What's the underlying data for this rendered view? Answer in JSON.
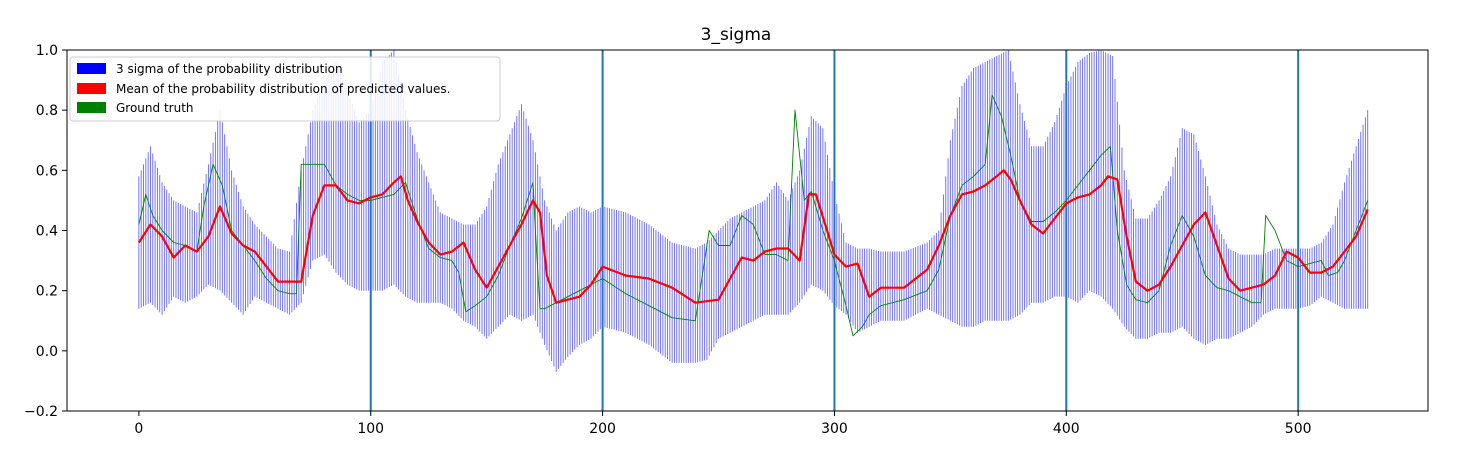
{
  "chart_data": {
    "type": "line",
    "title": "3_sigma",
    "xlabel": "",
    "ylabel": "",
    "xlim": [
      -31,
      556
    ],
    "ylim": [
      -0.2,
      1.0
    ],
    "x_ticks": [
      0,
      100,
      200,
      300,
      400,
      500
    ],
    "y_ticks": [
      -0.2,
      0.0,
      0.2,
      0.4,
      0.6,
      0.8,
      1.0
    ],
    "x_tick_labels": [
      "0",
      "100",
      "200",
      "300",
      "400",
      "500"
    ],
    "y_tick_labels": [
      "−0.2",
      "0.0",
      "0.2",
      "0.4",
      "0.6",
      "0.8",
      "1.0"
    ],
    "vertical_lines": [
      100,
      200,
      300,
      400,
      500
    ],
    "legend_position": "top-left",
    "grid": false,
    "series": [
      {
        "name": "3 sigma of the probability distribution",
        "kind": "band",
        "color": "#0000ff",
        "x": [
          0,
          5,
          10,
          15,
          20,
          25,
          30,
          35,
          40,
          45,
          50,
          55,
          60,
          65,
          70,
          75,
          80,
          85,
          90,
          95,
          100,
          105,
          110,
          115,
          120,
          125,
          130,
          135,
          140,
          145,
          150,
          155,
          160,
          165,
          170,
          175,
          180,
          185,
          190,
          195,
          200,
          210,
          220,
          230,
          240,
          245,
          250,
          255,
          260,
          265,
          270,
          275,
          280,
          285,
          290,
          295,
          300,
          305,
          310,
          315,
          320,
          330,
          340,
          345,
          350,
          355,
          360,
          365,
          370,
          375,
          380,
          385,
          390,
          395,
          400,
          405,
          410,
          415,
          420,
          425,
          430,
          435,
          440,
          445,
          450,
          455,
          460,
          465,
          470,
          475,
          480,
          485,
          490,
          495,
          500,
          505,
          510,
          515,
          520,
          525,
          530
        ],
        "lower": [
          0.14,
          0.16,
          0.12,
          0.18,
          0.16,
          0.18,
          0.22,
          0.2,
          0.16,
          0.12,
          0.18,
          0.16,
          0.14,
          0.12,
          0.16,
          0.3,
          0.32,
          0.26,
          0.22,
          0.2,
          0.2,
          0.2,
          0.22,
          0.18,
          0.16,
          0.16,
          0.16,
          0.14,
          0.1,
          0.08,
          0.04,
          0.08,
          0.12,
          0.1,
          0.12,
          0.02,
          -0.07,
          -0.02,
          0.02,
          0.04,
          0.08,
          0.06,
          0.02,
          -0.04,
          -0.04,
          -0.03,
          0.04,
          0.06,
          0.08,
          0.1,
          0.12,
          0.12,
          0.12,
          0.16,
          0.22,
          0.2,
          0.15,
          0.12,
          0.06,
          0.08,
          0.1,
          0.1,
          0.14,
          0.12,
          0.1,
          0.08,
          0.08,
          0.1,
          0.1,
          0.1,
          0.12,
          0.16,
          0.16,
          0.18,
          0.18,
          0.16,
          0.2,
          0.18,
          0.14,
          0.08,
          0.04,
          0.04,
          0.06,
          0.06,
          0.08,
          0.04,
          0.02,
          0.04,
          0.04,
          0.06,
          0.08,
          0.12,
          0.14,
          0.14,
          0.14,
          0.15,
          0.18,
          0.16,
          0.14,
          0.14,
          0.14
        ],
        "upper": [
          0.58,
          0.68,
          0.56,
          0.5,
          0.48,
          0.46,
          0.62,
          0.8,
          0.6,
          0.48,
          0.42,
          0.38,
          0.34,
          0.33,
          0.6,
          0.8,
          0.9,
          0.96,
          0.86,
          0.76,
          0.8,
          0.96,
          1.0,
          0.8,
          0.66,
          0.56,
          0.46,
          0.44,
          0.42,
          0.42,
          0.48,
          0.62,
          0.72,
          0.82,
          0.7,
          0.5,
          0.4,
          0.46,
          0.48,
          0.46,
          0.48,
          0.46,
          0.42,
          0.36,
          0.34,
          0.36,
          0.4,
          0.44,
          0.46,
          0.48,
          0.5,
          0.56,
          0.5,
          0.6,
          0.78,
          0.74,
          0.52,
          0.36,
          0.34,
          0.34,
          0.33,
          0.33,
          0.36,
          0.4,
          0.7,
          0.88,
          0.94,
          0.96,
          0.98,
          1.0,
          0.82,
          0.68,
          0.68,
          0.76,
          0.88,
          0.96,
          0.99,
          1.0,
          0.98,
          0.6,
          0.44,
          0.44,
          0.5,
          0.58,
          0.74,
          0.72,
          0.58,
          0.42,
          0.34,
          0.32,
          0.32,
          0.32,
          0.34,
          0.34,
          0.34,
          0.34,
          0.36,
          0.42,
          0.56,
          0.68,
          0.8
        ]
      },
      {
        "name": "Mean of the probability distribution of predicted values.",
        "kind": "line",
        "color": "#ff0000",
        "x": [
          0,
          5,
          10,
          15,
          20,
          25,
          30,
          35,
          40,
          45,
          50,
          55,
          60,
          65,
          70,
          75,
          80,
          85,
          90,
          95,
          100,
          105,
          110,
          113,
          116,
          120,
          125,
          130,
          135,
          140,
          145,
          150,
          155,
          160,
          165,
          170,
          173,
          176,
          180,
          185,
          190,
          195,
          200,
          210,
          220,
          230,
          240,
          250,
          255,
          260,
          265,
          270,
          275,
          280,
          285,
          289,
          292,
          296,
          300,
          305,
          310,
          315,
          320,
          330,
          340,
          345,
          350,
          355,
          360,
          365,
          370,
          373,
          376,
          380,
          385,
          390,
          395,
          400,
          405,
          410,
          415,
          418,
          422,
          426,
          430,
          435,
          440,
          445,
          450,
          455,
          460,
          465,
          470,
          475,
          480,
          485,
          490,
          495,
          500,
          505,
          510,
          515,
          520,
          525,
          530
        ],
        "y": [
          0.36,
          0.42,
          0.38,
          0.31,
          0.35,
          0.33,
          0.38,
          0.48,
          0.39,
          0.35,
          0.33,
          0.28,
          0.23,
          0.23,
          0.23,
          0.45,
          0.55,
          0.55,
          0.5,
          0.49,
          0.51,
          0.52,
          0.56,
          0.58,
          0.5,
          0.43,
          0.36,
          0.32,
          0.33,
          0.36,
          0.27,
          0.21,
          0.28,
          0.35,
          0.42,
          0.5,
          0.46,
          0.25,
          0.16,
          0.17,
          0.18,
          0.22,
          0.28,
          0.25,
          0.24,
          0.21,
          0.16,
          0.17,
          0.24,
          0.31,
          0.3,
          0.33,
          0.34,
          0.34,
          0.3,
          0.52,
          0.52,
          0.42,
          0.32,
          0.28,
          0.29,
          0.18,
          0.21,
          0.21,
          0.27,
          0.35,
          0.45,
          0.52,
          0.53,
          0.55,
          0.58,
          0.6,
          0.57,
          0.5,
          0.42,
          0.39,
          0.44,
          0.49,
          0.51,
          0.52,
          0.55,
          0.58,
          0.57,
          0.38,
          0.23,
          0.2,
          0.22,
          0.28,
          0.35,
          0.42,
          0.46,
          0.35,
          0.24,
          0.2,
          0.21,
          0.22,
          0.25,
          0.33,
          0.31,
          0.26,
          0.26,
          0.28,
          0.33,
          0.38,
          0.47
        ]
      },
      {
        "name": "Ground truth",
        "kind": "line",
        "color": "#008000",
        "x": [
          0,
          3,
          6,
          10,
          15,
          20,
          25,
          28,
          32,
          36,
          40,
          45,
          50,
          55,
          60,
          65,
          68,
          70,
          75,
          80,
          85,
          90,
          95,
          100,
          105,
          110,
          115,
          120,
          125,
          130,
          135,
          138,
          141,
          145,
          150,
          155,
          160,
          165,
          170,
          171,
          173,
          175,
          180,
          190,
          200,
          210,
          220,
          230,
          240,
          246,
          250,
          255,
          260,
          265,
          270,
          275,
          280,
          283,
          287,
          290,
          295,
          300,
          305,
          308,
          312,
          315,
          320,
          330,
          340,
          345,
          350,
          355,
          360,
          365,
          368,
          372,
          376,
          380,
          385,
          390,
          395,
          400,
          405,
          410,
          415,
          419,
          422,
          426,
          430,
          435,
          440,
          445,
          450,
          455,
          460,
          465,
          470,
          475,
          480,
          484,
          486,
          490,
          495,
          500,
          505,
          510,
          513,
          517,
          520,
          525,
          530
        ],
        "y": [
          0.42,
          0.52,
          0.45,
          0.4,
          0.36,
          0.35,
          0.33,
          0.48,
          0.62,
          0.55,
          0.4,
          0.35,
          0.3,
          0.24,
          0.2,
          0.19,
          0.19,
          0.62,
          0.62,
          0.62,
          0.55,
          0.52,
          0.5,
          0.5,
          0.51,
          0.52,
          0.56,
          0.44,
          0.34,
          0.31,
          0.3,
          0.26,
          0.13,
          0.15,
          0.18,
          0.25,
          0.35,
          0.44,
          0.56,
          0.4,
          0.14,
          0.14,
          0.16,
          0.2,
          0.24,
          0.19,
          0.15,
          0.11,
          0.1,
          0.4,
          0.35,
          0.35,
          0.45,
          0.42,
          0.32,
          0.32,
          0.3,
          0.8,
          0.5,
          0.53,
          0.4,
          0.3,
          0.15,
          0.05,
          0.08,
          0.12,
          0.15,
          0.17,
          0.2,
          0.27,
          0.45,
          0.55,
          0.58,
          0.62,
          0.85,
          0.78,
          0.65,
          0.5,
          0.43,
          0.43,
          0.46,
          0.5,
          0.55,
          0.6,
          0.65,
          0.68,
          0.4,
          0.22,
          0.17,
          0.16,
          0.2,
          0.35,
          0.45,
          0.38,
          0.25,
          0.21,
          0.2,
          0.18,
          0.16,
          0.16,
          0.45,
          0.4,
          0.3,
          0.28,
          0.29,
          0.3,
          0.25,
          0.26,
          0.3,
          0.4,
          0.5
        ]
      }
    ]
  }
}
